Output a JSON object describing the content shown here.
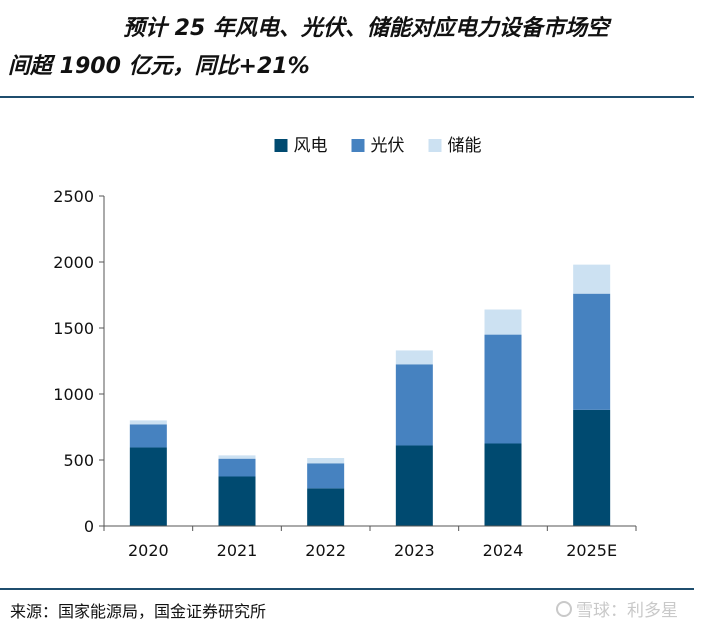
{
  "title": {
    "line1": "预计 25 年风电、光伏、储能对应电力设备市场空",
    "line2": "间超 1900 亿元，同比+21%"
  },
  "source": "来源：国家能源局，国金证券研究所",
  "watermark": "雪球：利多星",
  "colors": {
    "wind": "#004a70",
    "solar": "#4682c0",
    "storage": "#cce1f2",
    "rule": "#1f4e6e"
  },
  "chart_data": {
    "type": "bar",
    "stacked": true,
    "categories": [
      "2020",
      "2021",
      "2022",
      "2023",
      "2024",
      "2025E"
    ],
    "series": [
      {
        "name": "风电",
        "key": "wind",
        "values": [
          595,
          375,
          285,
          610,
          625,
          880
        ]
      },
      {
        "name": "光伏",
        "key": "solar",
        "values": [
          175,
          135,
          190,
          615,
          825,
          880
        ]
      },
      {
        "name": "储能",
        "key": "storage",
        "values": [
          30,
          25,
          40,
          105,
          190,
          220
        ]
      }
    ],
    "ylim": [
      0,
      2500
    ],
    "yticks": [
      0,
      500,
      1000,
      1500,
      2000,
      2500
    ],
    "legend_position": "top-center",
    "grid": false
  }
}
